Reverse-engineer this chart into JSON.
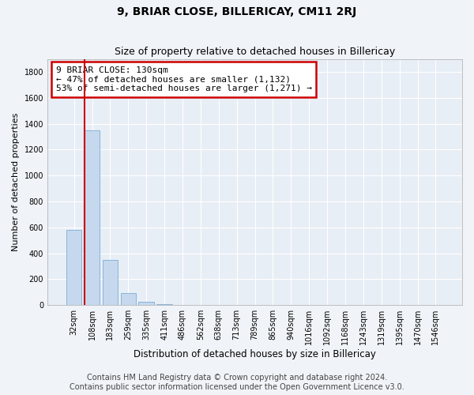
{
  "title": "9, BRIAR CLOSE, BILLERICAY, CM11 2RJ",
  "subtitle": "Size of property relative to detached houses in Billericay",
  "xlabel": "Distribution of detached houses by size in Billericay",
  "ylabel": "Number of detached properties",
  "categories": [
    "32sqm",
    "108sqm",
    "183sqm",
    "259sqm",
    "335sqm",
    "411sqm",
    "486sqm",
    "562sqm",
    "638sqm",
    "713sqm",
    "789sqm",
    "865sqm",
    "940sqm",
    "1016sqm",
    "1092sqm",
    "1168sqm",
    "1243sqm",
    "1319sqm",
    "1395sqm",
    "1470sqm",
    "1546sqm"
  ],
  "values": [
    580,
    1350,
    350,
    95,
    28,
    5,
    2,
    1,
    1,
    0,
    0,
    0,
    0,
    0,
    0,
    0,
    0,
    0,
    0,
    0,
    0
  ],
  "bar_color": "#c5d8ee",
  "bar_edge_color": "#7badd4",
  "vline_x_idx": 1,
  "vline_color": "#cc0000",
  "annotation_text": "9 BRIAR CLOSE: 130sqm\n← 47% of detached houses are smaller (1,132)\n53% of semi-detached houses are larger (1,271) →",
  "annotation_box_color": "#ffffff",
  "annotation_box_edge": "#cc0000",
  "ylim": [
    0,
    1900
  ],
  "yticks": [
    0,
    200,
    400,
    600,
    800,
    1000,
    1200,
    1400,
    1600,
    1800
  ],
  "footer_line1": "Contains HM Land Registry data © Crown copyright and database right 2024.",
  "footer_line2": "Contains public sector information licensed under the Open Government Licence v3.0.",
  "fig_bg_color": "#f0f4f8",
  "plot_bg_color": "#e8eef5",
  "grid_color": "#ffffff",
  "title_fontsize": 10,
  "subtitle_fontsize": 9,
  "tick_fontsize": 7,
  "ylabel_fontsize": 8,
  "xlabel_fontsize": 8.5,
  "annotation_fontsize": 8,
  "footer_fontsize": 7
}
